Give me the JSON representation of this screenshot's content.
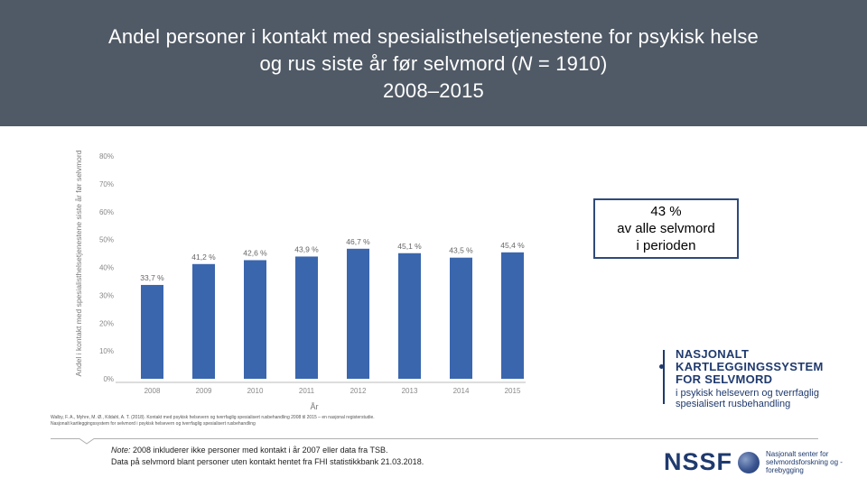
{
  "header": {
    "line1": "Andel personer i kontakt med spesialisthelsetjenestene for psykisk helse",
    "line2_prefix": "og rus siste år før selvmord (",
    "line2_n": "N",
    "line2_suffix": " = 1910)",
    "line3": "2008–2015"
  },
  "chart_data": {
    "type": "bar",
    "categories": [
      "2008",
      "2009",
      "2010",
      "2011",
      "2012",
      "2013",
      "2014",
      "2015"
    ],
    "values": [
      33.7,
      41.2,
      42.6,
      43.9,
      46.7,
      45.1,
      43.5,
      45.4
    ],
    "data_labels": [
      "33,7 %",
      "41,2 %",
      "42,6 %",
      "43,9 %",
      "46,7 %",
      "45,1 %",
      "43,5 %",
      "45,4 %"
    ],
    "yticks": [
      0,
      10,
      20,
      30,
      40,
      50,
      60,
      70,
      80
    ],
    "ytick_labels": [
      "0%",
      "10%",
      "20%",
      "30%",
      "40%",
      "50%",
      "60%",
      "70%",
      "80%"
    ],
    "ylim": [
      0,
      80
    ],
    "xlabel": "År",
    "ylabel": "Andel i kontakt med spesialisthelsetjenestene siste år før selvmord",
    "bar_color": "#3a66ad",
    "grid": false
  },
  "callout": {
    "line1": "43 %",
    "line2": "av alle selvmord",
    "line3": "i perioden"
  },
  "source": {
    "line1": "Walby, F. A., Myhre, M. Ø., Kildahl, A. T. (2018). Kontakt med psykisk helsevern og tverrfaglig spesialisert rusbehandling 2008 til 2015 – en nasjonal registerstudie.",
    "line2": "Nasjonalt kartleggingssystem for selvmord i psykisk helsevern og tverrfaglig spesialisert rusbehandling"
  },
  "note": {
    "label": "Note:",
    "line1_rest": " 2008 inkluderer ikke personer med kontakt i år 2007 eller data fra TSB.",
    "line2": "Data på selvmord blant personer uten kontakt hentet fra FHI statistikkbank 21.03.2018."
  },
  "logo_nks": {
    "line1": "NASJONALT",
    "line2": "KARTLEGGINGSSYSTEM",
    "line3": "FOR SELVMORD",
    "line4": "i psykisk helsevern og tverrfaglig",
    "line5": "spesialisert rusbehandling"
  },
  "logo_nssf": {
    "word": "NSSF",
    "tagline": "Nasjonalt senter for selvmordsforskning og -forebygging"
  }
}
